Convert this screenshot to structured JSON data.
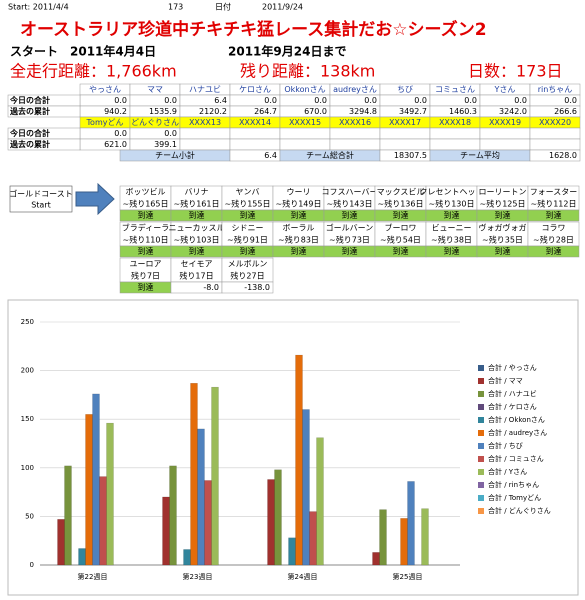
{
  "header": {
    "start_label": "Start: 2011/4/4",
    "days": "173",
    "date_label": "日付",
    "date": "2011/9/24",
    "title": "オーストラリア珍道中チキチキ猛レース集計だお☆シーズン2",
    "start_line": "スタート　2011年4月4日",
    "end_line": "2011年9月24日まで",
    "total_distance": "全走行距離：1,766km",
    "remaining": "残り距離：138km",
    "days_count": "日数：173日"
  },
  "table": {
    "row_labels": [
      "今日の合計",
      "過去の累計"
    ],
    "groups": [
      {
        "names": [
          "やっさん",
          "ママ",
          "ハナユビ",
          "ケロさん",
          "Okkonさん",
          "audreyさん",
          "ちび",
          "コミュさん",
          "Yさん",
          "rinちゃん"
        ],
        "today": [
          "0.0",
          "0.0",
          "6.4",
          "0.0",
          "0.0",
          "0.0",
          "0.0",
          "0.0",
          "0.0",
          "0.0"
        ],
        "cumulative": [
          "940.2",
          "1535.9",
          "2120.2",
          "264.7",
          "670.0",
          "3294.8",
          "3492.7",
          "1460.3",
          "3242.0",
          "266.6"
        ]
      },
      {
        "names": [
          "Tomyどん",
          "どんぐりさん",
          "XXXX13",
          "XXXX14",
          "XXXX15",
          "XXXX16",
          "XXXX17",
          "XXXX18",
          "XXXX19",
          "XXXX20"
        ],
        "today": [
          "0.0",
          "0.0"
        ],
        "cumulative": [
          "621.0",
          "399.1"
        ]
      }
    ],
    "summary": [
      "チーム小計",
      "6.4",
      "チーム総合計",
      "18307.5",
      "チーム平均",
      "1628.0"
    ]
  },
  "route": {
    "start": [
      "ゴールドコースト",
      "Start"
    ],
    "cities": [
      {
        "name": "ボッツビル",
        "remain": "~残り165日",
        "status": "到達"
      },
      {
        "name": "バリナ",
        "remain": "~残り161日",
        "status": "到達"
      },
      {
        "name": "ヤンバ",
        "remain": "~残り155日",
        "status": "到達"
      },
      {
        "name": "ウーリ",
        "remain": "~残り149日",
        "status": "到達"
      },
      {
        "name": "コフスハーバー",
        "remain": "~残り143日",
        "status": "到達"
      },
      {
        "name": "マックスビル",
        "remain": "~残り136日",
        "status": "到達"
      },
      {
        "name": "クレセントヘッド",
        "remain": "~残り130日",
        "status": "到達"
      },
      {
        "name": "ローリートン",
        "remain": "~残り125日",
        "status": "到達"
      },
      {
        "name": "フォースター",
        "remain": "~残り112日",
        "status": "到達"
      },
      {
        "name": "ブラディーラ",
        "remain": "~残り110日",
        "status": "到達"
      },
      {
        "name": "ニューカッスル",
        "remain": "~残り103日",
        "status": "到達"
      },
      {
        "name": "シドニー",
        "remain": "~残り91日",
        "status": "到達"
      },
      {
        "name": "ボーラル",
        "remain": "~残り83日",
        "status": "到達"
      },
      {
        "name": "ゴールバーン",
        "remain": "~残り73日",
        "status": "到達"
      },
      {
        "name": "ブーロワ",
        "remain": "~残り54日",
        "status": "到達"
      },
      {
        "name": "ビューニー",
        "remain": "~残り38日",
        "status": "到達"
      },
      {
        "name": "ヴォガヴォガ",
        "remain": "~残り35日",
        "status": "到達"
      },
      {
        "name": "コラワ",
        "remain": "~残り28日",
        "status": "到達"
      },
      {
        "name": "ユーロア",
        "remain": "残り7日",
        "status": "到達"
      },
      {
        "name": "セイモア",
        "remain": "残り17日",
        "status": "-8.0"
      },
      {
        "name": "メルボルン",
        "remain": "残り27日",
        "status": "-138.0"
      }
    ]
  },
  "chart_data": {
    "type": "bar",
    "categories": [
      "第22週目",
      "第23週目",
      "第24週目",
      "第25週目"
    ],
    "ylim": [
      0,
      250
    ],
    "yticks": [
      0,
      50,
      100,
      150,
      200,
      250
    ],
    "grid": true,
    "legend": "right",
    "series": [
      {
        "name": "合計 / やっさん",
        "color": "#385D8A",
        "values": [
          0,
          0,
          0,
          0
        ]
      },
      {
        "name": "合計 / ママ",
        "color": "#A0312E",
        "values": [
          47,
          70,
          88,
          13
        ]
      },
      {
        "name": "合計 / ハナユビ",
        "color": "#77933C",
        "values": [
          102,
          102,
          98,
          57
        ]
      },
      {
        "name": "合計 / ケロさん",
        "color": "#604A7B",
        "values": [
          0,
          0,
          0,
          0
        ]
      },
      {
        "name": "合計 / Okkonさん",
        "color": "#31859C",
        "values": [
          17,
          16,
          28,
          0
        ]
      },
      {
        "name": "合計 / audreyさん",
        "color": "#E46C0A",
        "values": [
          155,
          187,
          216,
          48
        ]
      },
      {
        "name": "合計 / ちび",
        "color": "#4F81BD",
        "values": [
          176,
          140,
          160,
          86
        ]
      },
      {
        "name": "合計 / コミュさん",
        "color": "#C0504D",
        "values": [
          91,
          87,
          55,
          0
        ]
      },
      {
        "name": "合計 / Yさん",
        "color": "#9BBB59",
        "values": [
          146,
          183,
          131,
          58
        ]
      },
      {
        "name": "合計 / rinちゃん",
        "color": "#8064A2",
        "values": [
          0,
          0,
          0,
          0
        ]
      },
      {
        "name": "合計 / Tomyどん",
        "color": "#4BACC6",
        "values": [
          0,
          0,
          0,
          0
        ]
      },
      {
        "name": "合計 / どんぐりさん",
        "color": "#F79646",
        "values": [
          0,
          0,
          0,
          0
        ]
      }
    ]
  }
}
